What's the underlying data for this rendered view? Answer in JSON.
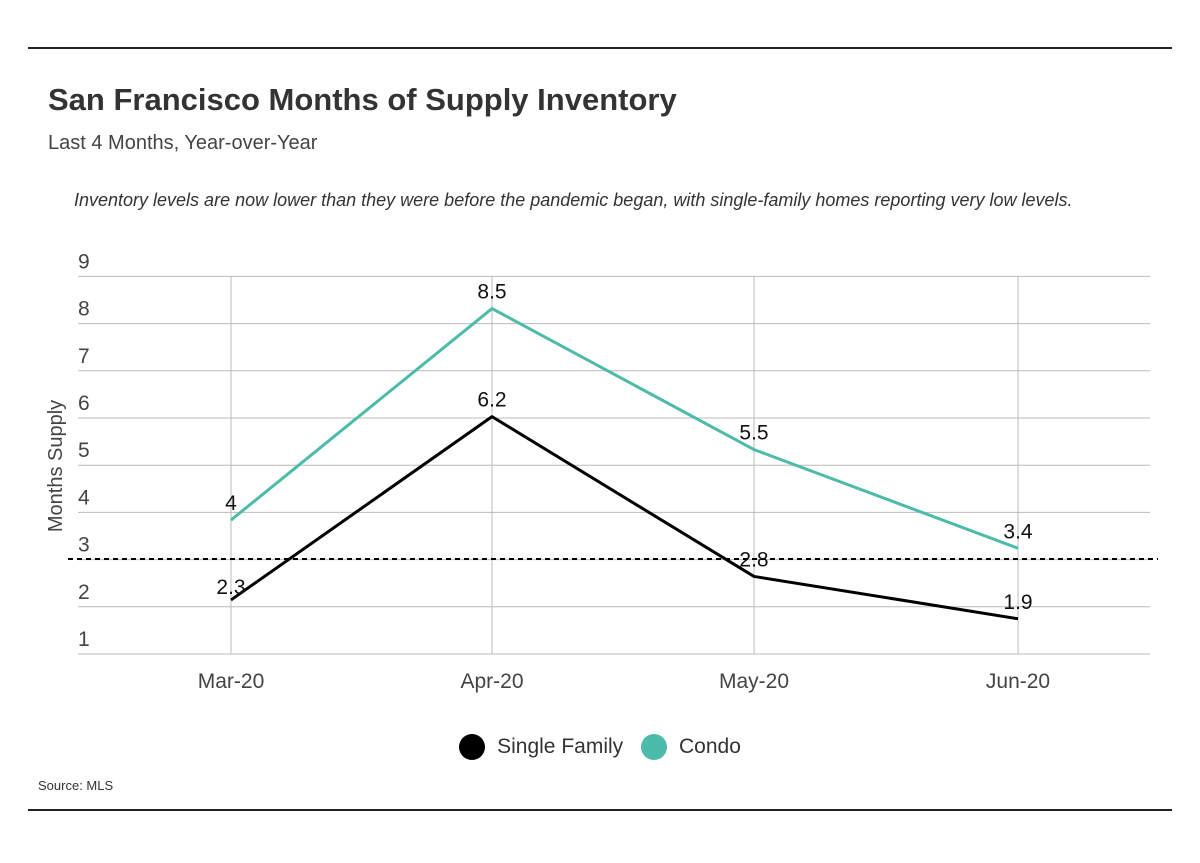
{
  "title": "San Francisco Months of Supply Inventory",
  "subtitle": "Last 4 Months, Year-over-Year",
  "note": "Inventory levels are now lower than they were before the pandemic began, with single-family homes reporting very low levels.",
  "source": "Source:  MLS",
  "colors": {
    "single_family": "#000000",
    "condo": "#4dbba9",
    "grid": "#bbbbbb",
    "reference": "#000000"
  },
  "chart_data": {
    "type": "line",
    "title": "San Francisco Months of Supply Inventory",
    "subtitle": "Last 4 Months, Year-over-Year",
    "ylabel": "Months Supply",
    "xlabel": "",
    "categories": [
      "Mar-20",
      "Apr-20",
      "May-20",
      "Jun-20"
    ],
    "ylim": [
      1,
      9
    ],
    "yticks": [
      1,
      2,
      3,
      4,
      5,
      6,
      7,
      8,
      9
    ],
    "reference_line": {
      "y": 2.9,
      "style": "dashed"
    },
    "grid": true,
    "legend_position": "bottom",
    "series": [
      {
        "name": "Single Family",
        "values": [
          2.3,
          6.2,
          2.8,
          1.9
        ],
        "labels": [
          "2.3",
          "6.2",
          "2.8",
          "1.9"
        ]
      },
      {
        "name": "Condo",
        "values": [
          4.0,
          8.5,
          5.5,
          3.4
        ],
        "labels": [
          "4",
          "8.5",
          "5.5",
          "3.4"
        ]
      }
    ]
  }
}
